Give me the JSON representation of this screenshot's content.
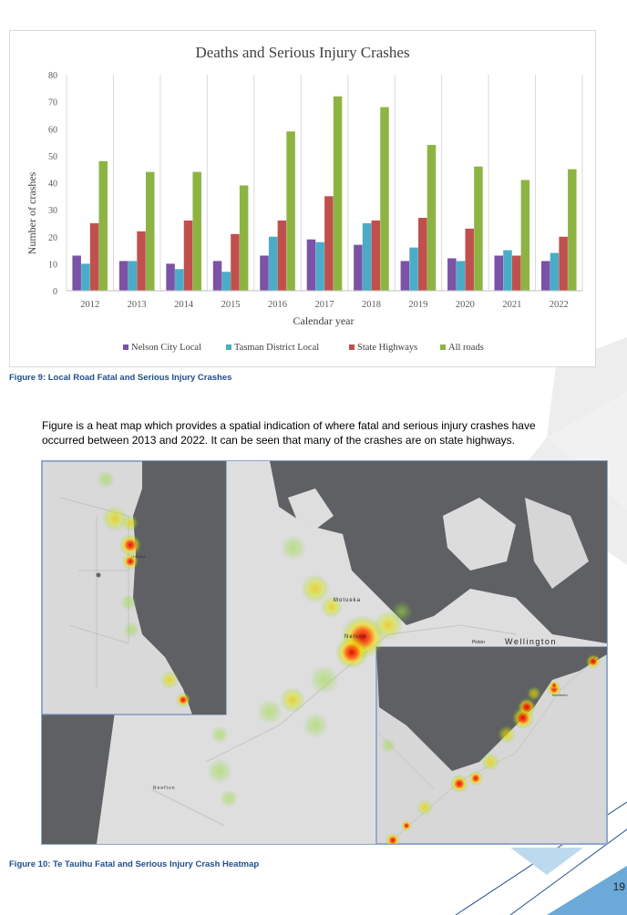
{
  "chart_data": {
    "type": "bar",
    "title": "Deaths and Serious Injury Crashes",
    "xlabel": "Calendar year",
    "ylabel": "Number of crashes",
    "ylim": [
      0,
      80
    ],
    "yticks": [
      0,
      10,
      20,
      30,
      40,
      50,
      60,
      70,
      80
    ],
    "grid": "vertical category separators",
    "legend_position": "bottom",
    "categories": [
      "2012",
      "2013",
      "2014",
      "2015",
      "2016",
      "2017",
      "2018",
      "2019",
      "2020",
      "2021",
      "2022"
    ],
    "series": [
      {
        "name": "Nelson City Local",
        "color": "#7b52a6",
        "values": [
          13,
          11,
          10,
          11,
          13,
          19,
          17,
          11,
          12,
          13,
          11
        ]
      },
      {
        "name": "Tasman District Local",
        "color": "#4aacc6",
        "values": [
          10,
          11,
          8,
          7,
          20,
          18,
          25,
          16,
          11,
          15,
          14
        ]
      },
      {
        "name": "State Highways",
        "color": "#c0504d",
        "values": [
          25,
          22,
          26,
          21,
          26,
          35,
          26,
          27,
          23,
          13,
          20
        ]
      },
      {
        "name": "All roads",
        "color": "#8db443",
        "values": [
          48,
          44,
          44,
          39,
          59,
          72,
          68,
          54,
          46,
          41,
          45
        ]
      }
    ]
  },
  "captions": {
    "figure9": "Figure 9: Local Road Fatal and Serious Injury Crashes",
    "figure10": "Figure 10: Te Tauihu Fatal and Serious Injury Crash Heatmap"
  },
  "body_text": "Figure  is a heat map which provides a spatial indication of where fatal and serious injury crashes have occurred between 2013 and 2022.  It can be seen that many of the crashes are on state highways.",
  "map": {
    "labels": {
      "motueka": "Motueka",
      "nelson": "Nelson",
      "picton": "Picton",
      "wellington": "Wellington",
      "reefton": "Reefton",
      "inset_motueka": "Motueka",
      "blenheim": "Blenheim"
    },
    "colors": {
      "land": "#dedede",
      "sea": "#5f6063",
      "inset_border": "#6b8cc0",
      "heat_low": "#7ed321",
      "heat_mid": "#f5e100",
      "heat_high": "#e00000"
    }
  },
  "page_number": "19"
}
